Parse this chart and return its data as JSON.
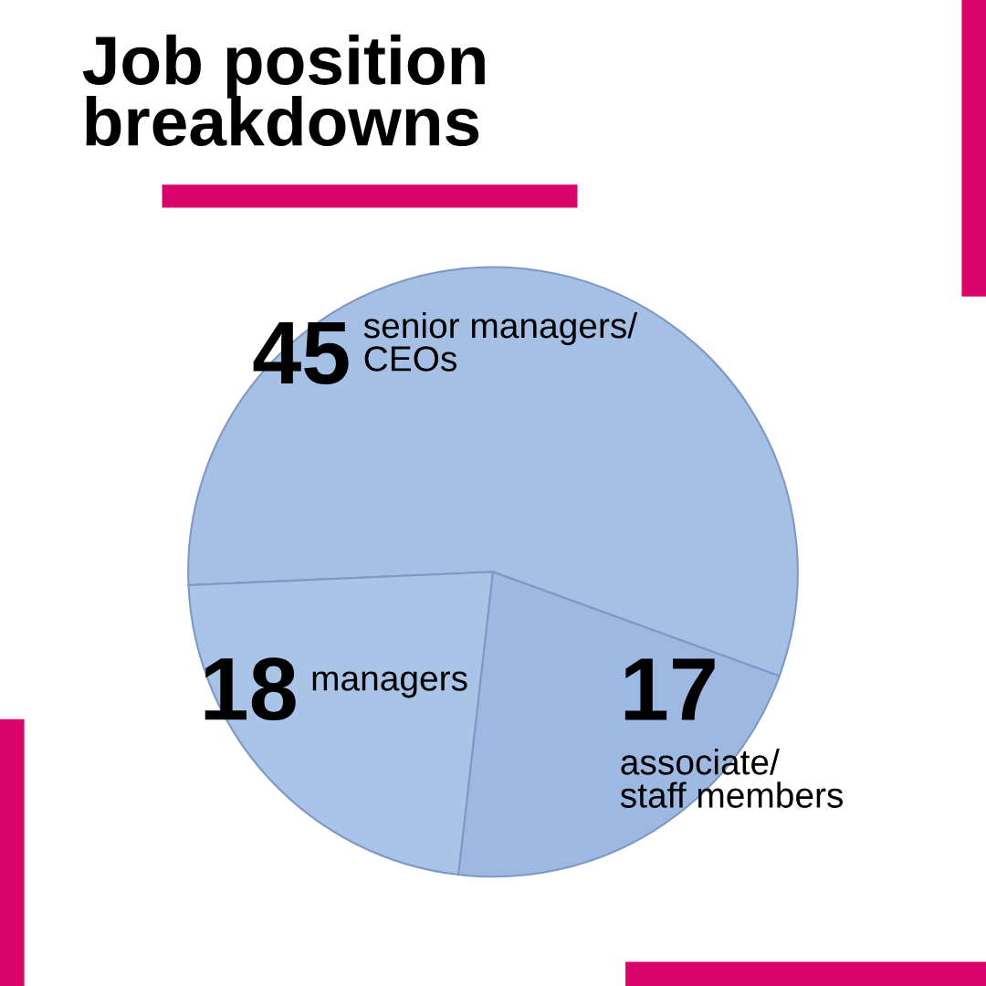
{
  "chart_data": {
    "type": "pie",
    "title": "Job position\nbreakdowns",
    "categories": [
      "senior managers/\nCEOs",
      "managers",
      "associate/\nstaff members"
    ],
    "values": [
      45,
      18,
      17
    ],
    "colors": [
      "#a6c0e5",
      "#a9c4e7",
      "#9db8e1"
    ],
    "data_labels": true,
    "legend": false
  }
}
